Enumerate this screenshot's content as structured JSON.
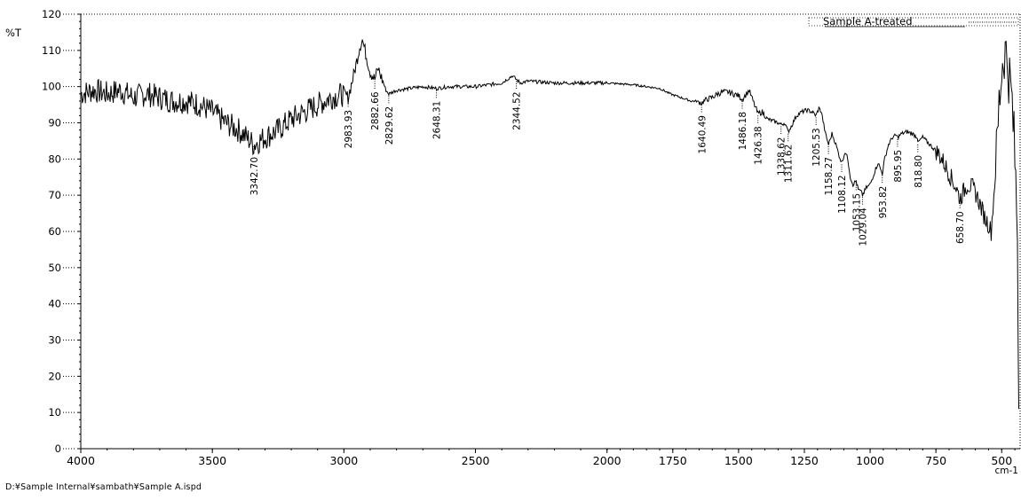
{
  "file_path": "D:¥Sample Internal¥sambath¥Sample A.ispd",
  "chart_data": {
    "type": "line",
    "title": "",
    "ylabel": "%T",
    "xlabel": "cm-1",
    "x_reversed": true,
    "xlim": [
      4000,
      430
    ],
    "ylim": [
      0,
      120
    ],
    "grid": false,
    "legend_position": "top-right",
    "x_tick_labels": [
      "4000",
      "3500",
      "3000",
      "2500",
      "2000",
      "1750",
      "1500",
      "1250",
      "1000",
      "750",
      "500"
    ],
    "y_tick_labels": [
      "0",
      "10",
      "20",
      "30",
      "40",
      "50",
      "60",
      "70",
      "80",
      "90",
      "100",
      "110",
      "120"
    ],
    "series": [
      {
        "name": "Sample A-treated",
        "color": "#000000",
        "points": [
          [
            4000,
            98
          ],
          [
            3950,
            99
          ],
          [
            3900,
            98
          ],
          [
            3850,
            99
          ],
          [
            3800,
            97
          ],
          [
            3750,
            98
          ],
          [
            3700,
            97
          ],
          [
            3650,
            96
          ],
          [
            3600,
            96
          ],
          [
            3550,
            95
          ],
          [
            3500,
            93
          ],
          [
            3450,
            90
          ],
          [
            3400,
            88
          ],
          [
            3370,
            86
          ],
          [
            3342.7,
            84
          ],
          [
            3300,
            86
          ],
          [
            3250,
            88
          ],
          [
            3200,
            91
          ],
          [
            3150,
            93
          ],
          [
            3100,
            95
          ],
          [
            3050,
            97
          ],
          [
            3000,
            98
          ],
          [
            2983.93,
            97
          ],
          [
            2960,
            104
          ],
          [
            2940,
            111
          ],
          [
            2930,
            113
          ],
          [
            2920,
            110
          ],
          [
            2900,
            104
          ],
          [
            2882.66,
            102
          ],
          [
            2870,
            105
          ],
          [
            2860,
            103
          ],
          [
            2840,
            99
          ],
          [
            2829.62,
            98
          ],
          [
            2800,
            99
          ],
          [
            2700,
            100
          ],
          [
            2648.31,
            99.5
          ],
          [
            2600,
            100
          ],
          [
            2500,
            100
          ],
          [
            2400,
            101
          ],
          [
            2360,
            103
          ],
          [
            2344.52,
            102
          ],
          [
            2330,
            101
          ],
          [
            2300,
            101.5
          ],
          [
            2200,
            101
          ],
          [
            2100,
            101
          ],
          [
            2000,
            101
          ],
          [
            1900,
            100.5
          ],
          [
            1850,
            100
          ],
          [
            1800,
            99.5
          ],
          [
            1760,
            98
          ],
          [
            1720,
            97
          ],
          [
            1680,
            96
          ],
          [
            1660,
            96
          ],
          [
            1640.49,
            95.5
          ],
          [
            1620,
            96.5
          ],
          [
            1600,
            97
          ],
          [
            1580,
            98
          ],
          [
            1560,
            98.5
          ],
          [
            1540,
            98.5
          ],
          [
            1520,
            98
          ],
          [
            1500,
            97.5
          ],
          [
            1486.18,
            96.5
          ],
          [
            1470,
            98
          ],
          [
            1460,
            99
          ],
          [
            1445,
            96
          ],
          [
            1426.38,
            92.5
          ],
          [
            1410,
            93
          ],
          [
            1390,
            91
          ],
          [
            1370,
            90.5
          ],
          [
            1350,
            90
          ],
          [
            1338.62,
            89.5
          ],
          [
            1325,
            90
          ],
          [
            1311.62,
            87.5
          ],
          [
            1300,
            89
          ],
          [
            1280,
            92
          ],
          [
            1260,
            93
          ],
          [
            1240,
            93.5
          ],
          [
            1220,
            93
          ],
          [
            1205.53,
            92
          ],
          [
            1195,
            94
          ],
          [
            1185,
            93
          ],
          [
            1170,
            87
          ],
          [
            1158.27,
            84
          ],
          [
            1145,
            87
          ],
          [
            1130,
            84
          ],
          [
            1118,
            81
          ],
          [
            1108.12,
            79
          ],
          [
            1095,
            82
          ],
          [
            1085,
            80
          ],
          [
            1075,
            75
          ],
          [
            1065,
            73
          ],
          [
            1053.15,
            74
          ],
          [
            1045,
            71.5
          ],
          [
            1035,
            71
          ],
          [
            1029.04,
            70
          ],
          [
            1015,
            72
          ],
          [
            1000,
            73
          ],
          [
            985,
            76
          ],
          [
            970,
            79
          ],
          [
            953.82,
            76
          ],
          [
            945,
            80
          ],
          [
            930,
            84
          ],
          [
            915,
            86
          ],
          [
            900,
            86.5
          ],
          [
            895.95,
            86
          ],
          [
            880,
            87
          ],
          [
            860,
            87.5
          ],
          [
            840,
            87
          ],
          [
            820,
            86
          ],
          [
            818.8,
            84.5
          ],
          [
            800,
            86
          ],
          [
            780,
            84.5
          ],
          [
            760,
            83
          ],
          [
            740,
            81.5
          ],
          [
            720,
            79
          ],
          [
            700,
            76
          ],
          [
            680,
            73
          ],
          [
            670,
            71.5
          ],
          [
            658.7,
            69
          ],
          [
            645,
            71
          ],
          [
            630,
            73
          ],
          [
            610,
            72
          ],
          [
            595,
            70
          ],
          [
            580,
            67
          ],
          [
            565,
            64
          ],
          [
            550,
            62
          ],
          [
            540,
            60
          ],
          [
            530,
            70
          ],
          [
            520,
            80
          ],
          [
            510,
            95
          ],
          [
            500,
            105
          ],
          [
            490,
            110
          ],
          [
            480,
            108
          ],
          [
            470,
            102
          ],
          [
            460,
            95
          ],
          [
            450,
            80
          ],
          [
            440,
            60
          ],
          [
            435,
            11
          ]
        ]
      }
    ],
    "annotations": [
      {
        "x": 3342.7,
        "y": 84,
        "label": "3342.70"
      },
      {
        "x": 2983.93,
        "y": 97,
        "label": "2983.93"
      },
      {
        "x": 2882.66,
        "y": 102,
        "label": "2882.66"
      },
      {
        "x": 2829.62,
        "y": 98,
        "label": "2829.62"
      },
      {
        "x": 2648.31,
        "y": 99.5,
        "label": "2648.31"
      },
      {
        "x": 2344.52,
        "y": 102,
        "label": "2344.52"
      },
      {
        "x": 1640.49,
        "y": 95.5,
        "label": "1640.49"
      },
      {
        "x": 1486.18,
        "y": 96.5,
        "label": "1486.18"
      },
      {
        "x": 1426.38,
        "y": 92.5,
        "label": "1426.38"
      },
      {
        "x": 1338.62,
        "y": 89.5,
        "label": "1338.62"
      },
      {
        "x": 1311.62,
        "y": 87.5,
        "label": "1311.62"
      },
      {
        "x": 1205.53,
        "y": 92,
        "label": "1205.53"
      },
      {
        "x": 1158.27,
        "y": 84,
        "label": "1158.27"
      },
      {
        "x": 1108.12,
        "y": 79,
        "label": "1108.12"
      },
      {
        "x": 1053.15,
        "y": 74,
        "label": "1053.15"
      },
      {
        "x": 1029.04,
        "y": 70,
        "label": "1029.04"
      },
      {
        "x": 953.82,
        "y": 76,
        "label": "953.82"
      },
      {
        "x": 895.95,
        "y": 86,
        "label": "895.95"
      },
      {
        "x": 818.8,
        "y": 84.5,
        "label": "818.80"
      },
      {
        "x": 658.7,
        "y": 69,
        "label": "658.70"
      }
    ]
  }
}
